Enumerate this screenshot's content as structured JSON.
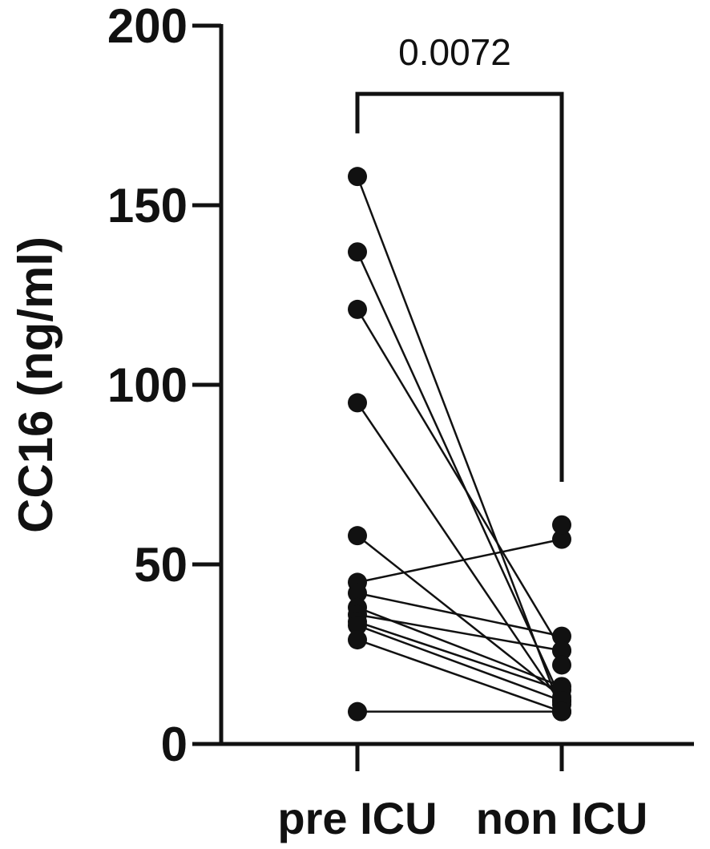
{
  "chart_data": {
    "type": "scatter",
    "title": "",
    "ylabel": "CC16 (ng/ml)",
    "xlabel": "",
    "categories": [
      "pre ICU",
      "non ICU"
    ],
    "ylim": [
      0,
      200
    ],
    "yticks": [
      0,
      50,
      100,
      150,
      200
    ],
    "grid": false,
    "paired": true,
    "pairs": [
      {
        "pre": 158,
        "post": 9
      },
      {
        "pre": 137,
        "post": 12
      },
      {
        "pre": 121,
        "post": 26
      },
      {
        "pre": 95,
        "post": 11
      },
      {
        "pre": 58,
        "post": 13
      },
      {
        "pre": 45,
        "post": 57
      },
      {
        "pre": 42,
        "post": 30
      },
      {
        "pre": 38,
        "post": 16
      },
      {
        "pre": 36,
        "post": 26
      },
      {
        "pre": 34,
        "post": 15
      },
      {
        "pre": 33,
        "post": 12
      },
      {
        "pre": 29,
        "post": 9
      },
      {
        "pre": 9,
        "post": 9
      }
    ],
    "extra_points": [
      {
        "category": "non ICU",
        "value": 61
      },
      {
        "category": "non ICU",
        "value": 22
      }
    ],
    "annotations": [
      {
        "type": "significance-bracket",
        "text": "0.0072",
        "from": "pre ICU",
        "to": "non ICU",
        "pre_end": 170,
        "post_end": 73,
        "top": 181
      }
    ]
  }
}
